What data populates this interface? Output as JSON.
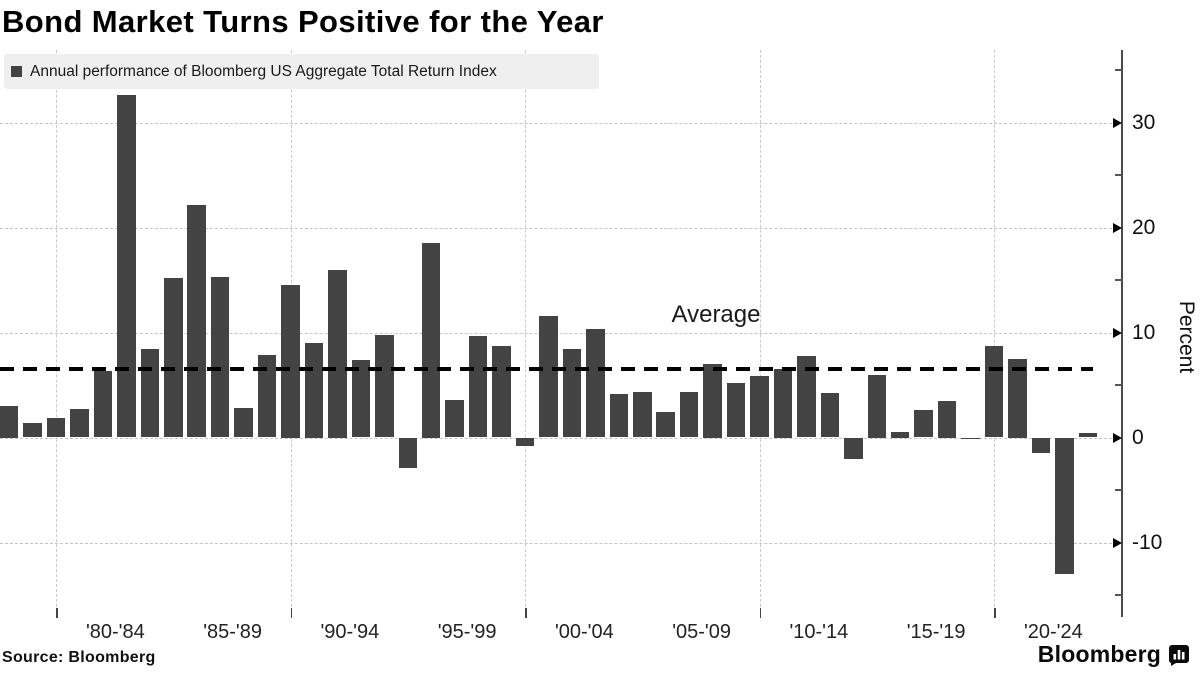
{
  "title": "Bond Market Turns Positive for the Year",
  "legend": {
    "label": "Annual performance of Bloomberg US Aggregate Total Return Index",
    "swatch_color": "#434343"
  },
  "source": "Source:  Bloomberg",
  "brand": {
    "name": "Bloomberg",
    "icon": "chart-bubble-icon"
  },
  "chart_data": {
    "type": "bar",
    "title": "Bond Market Turns Positive for the Year",
    "series_label": "Annual performance of Bloomberg US Aggregate Total Return Index",
    "bar_color": "#434343",
    "grid": true,
    "legend_position": "top-left",
    "years": [
      1977,
      1978,
      1979,
      1980,
      1981,
      1982,
      1983,
      1984,
      1985,
      1986,
      1987,
      1988,
      1989,
      1990,
      1991,
      1992,
      1993,
      1994,
      1995,
      1996,
      1997,
      1998,
      1999,
      2000,
      2001,
      2002,
      2003,
      2004,
      2005,
      2006,
      2007,
      2008,
      2009,
      2010,
      2011,
      2012,
      2013,
      2014,
      2015,
      2016,
      2017,
      2018,
      2019,
      2020,
      2021,
      2022,
      2023
    ],
    "values": [
      3.0,
      1.4,
      1.9,
      2.7,
      6.3,
      32.6,
      8.4,
      15.2,
      22.1,
      15.3,
      2.8,
      7.9,
      14.5,
      9.0,
      16.0,
      7.4,
      9.8,
      -2.9,
      18.5,
      3.6,
      9.7,
      8.7,
      -0.8,
      11.6,
      8.4,
      10.3,
      4.1,
      4.3,
      2.4,
      4.3,
      7.0,
      5.2,
      5.9,
      6.5,
      7.8,
      4.2,
      -2.0,
      6.0,
      0.5,
      2.6,
      3.5,
      0.0,
      8.7,
      7.5,
      -1.5,
      -13.0,
      0.4
    ],
    "average": {
      "label": "Average",
      "value": 6.55
    },
    "y_axis": {
      "label": "Percent",
      "tick_labels": [
        "30",
        "20",
        "10",
        "0",
        "-10"
      ],
      "ticks": [
        30,
        20,
        10,
        0,
        -10
      ],
      "minor_ticks": [
        35,
        25,
        15,
        5,
        -5,
        -15
      ],
      "range": [
        -17,
        37
      ]
    },
    "x_axis": {
      "group_labels": [
        "'80-'84",
        "'85-'89",
        "'90-'94",
        "'95-'99",
        "'00-'04",
        "'05-'09",
        "'10-'14",
        "'15-'19",
        "'20-'24"
      ],
      "group_mid_years": [
        1982,
        1987,
        1992,
        1997,
        2002,
        2007,
        2012,
        2017,
        2022
      ],
      "decade_gridline_years": [
        1979,
        1989,
        1999,
        2009,
        2019
      ]
    }
  }
}
